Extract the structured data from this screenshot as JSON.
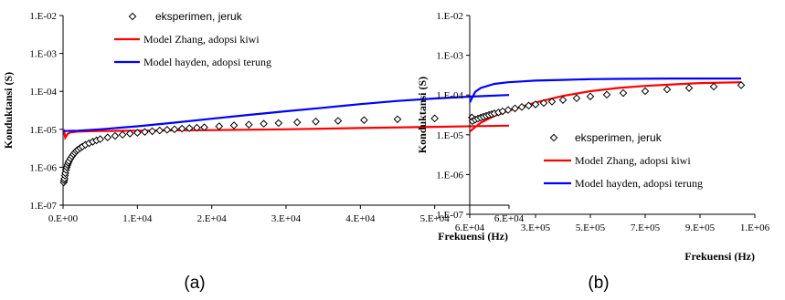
{
  "chart_data": [
    {
      "type": "line",
      "panel_label": "(a)",
      "xlabel": "Frekuensi (Hz)",
      "ylabel": "Konduktansi (S)",
      "xscale": "linear",
      "yscale": "log",
      "xlim": [
        0,
        60000
      ],
      "ylim": [
        1e-07,
        0.01
      ],
      "x_ticks": [
        0,
        10000,
        20000,
        30000,
        40000,
        50000,
        60000
      ],
      "x_tick_labels": [
        "0.E+00",
        "1.E+04",
        "2.E+04",
        "3.E+04",
        "4.E+04",
        "5.E+04",
        "6.E+04"
      ],
      "y_ticks": [
        1e-07,
        1e-06,
        1e-05,
        0.0001,
        0.001,
        0.01
      ],
      "y_tick_labels": [
        "1.E-07",
        "1.E-06",
        "1.E-05",
        "1.E-04",
        "1.E-03",
        "1.E-02"
      ],
      "legend_position": "top-right",
      "series": [
        {
          "name": "eksperimen, jeruk",
          "style": "markers",
          "marker": "diamond",
          "color": "#000000",
          "x": [
            100,
            150,
            200,
            250,
            300,
            400,
            500,
            600,
            700,
            800,
            1000,
            1200,
            1400,
            1600,
            1800,
            2000,
            2300,
            2600,
            3000,
            3500,
            4000,
            4500,
            5000,
            6000,
            7000,
            8000,
            9000,
            10000,
            11000,
            12000,
            13000,
            14000,
            15000,
            16000,
            17000,
            18000,
            19000,
            21000,
            23000,
            25000,
            27000,
            29000,
            31500,
            34000,
            37000,
            40500,
            45000,
            50000,
            55000
          ],
          "y": [
            4e-07,
            4.5e-07,
            5e-07,
            6e-07,
            7e-07,
            8.5e-07,
            1e-06,
            1.15e-06,
            1.3e-06,
            1.45e-06,
            1.7e-06,
            1.95e-06,
            2.2e-06,
            2.45e-06,
            2.7e-06,
            2.9e-06,
            3.2e-06,
            3.5e-06,
            3.9e-06,
            4.3e-06,
            4.7e-06,
            5.1e-06,
            5.5e-06,
            6.1e-06,
            6.7e-06,
            7.2e-06,
            7.7e-06,
            8.1e-06,
            8.5e-06,
            8.9e-06,
            9.3e-06,
            9.7e-06,
            1e-05,
            1.04e-05,
            1.07e-05,
            1.1e-05,
            1.13e-05,
            1.2e-05,
            1.27e-05,
            1.33e-05,
            1.4e-05,
            1.46e-05,
            1.53e-05,
            1.6e-05,
            1.67e-05,
            1.75e-05,
            1.84e-05,
            1.94e-05,
            2.05e-05
          ]
        },
        {
          "name": "Model Zhang, adopsi kiwi",
          "style": "line",
          "color": "#ff0000",
          "x": [
            100,
            300,
            600,
            1000,
            2000,
            5000,
            10000,
            20000,
            30000,
            40000,
            50000,
            60000
          ],
          "y": [
            1e-05,
            6e-06,
            7.5e-06,
            8.3e-06,
            8.7e-06,
            9e-06,
            9.2e-06,
            9.5e-06,
            1e-05,
            1.08e-05,
            1.16e-05,
            1.25e-05
          ]
        },
        {
          "name": "Model hayden, adopsi terung",
          "style": "line",
          "color": "#0000ff",
          "x": [
            0,
            2000,
            5000,
            10000,
            15000,
            20000,
            25000,
            30000,
            35000,
            40000,
            45000,
            50000,
            55000,
            60000
          ],
          "y": [
            9e-06,
            9.2e-06,
            1e-05,
            1.2e-05,
            1.5e-05,
            1.9e-05,
            2.4e-05,
            3e-05,
            3.7e-05,
            4.6e-05,
            5.6e-05,
            6.5e-05,
            7.3e-05,
            8e-05
          ]
        }
      ]
    },
    {
      "type": "line",
      "panel_label": "(b)",
      "xlabel": "Frekuensi (Hz)",
      "ylabel": "Konduktansi (S)",
      "xscale": "linear",
      "yscale": "log",
      "xlim": [
        60000,
        1100000
      ],
      "ylim": [
        1e-07,
        0.01
      ],
      "x_ticks": [
        60000,
        300000,
        500000,
        700000,
        900000,
        1100000
      ],
      "x_tick_labels": [
        "6.E+04",
        "3.E+05",
        "5.E+05",
        "7.E+05",
        "9.E+05",
        "1.E+06"
      ],
      "y_ticks": [
        1e-07,
        1e-06,
        1e-05,
        0.0001,
        0.001,
        0.01
      ],
      "y_tick_labels": [
        "1.E-07",
        "1.E-06",
        "1.E-05",
        "1.E-04",
        "1.E-03",
        "1.E-02"
      ],
      "legend_position": "center-right",
      "series": [
        {
          "name": "eksperimen, jeruk",
          "style": "markers",
          "marker": "diamond",
          "color": "#000000",
          "x": [
            70000,
            80000,
            90000,
            100000,
            110000,
            120000,
            130000,
            140000,
            150000,
            165000,
            180000,
            200000,
            225000,
            250000,
            275000,
            300000,
            330000,
            360000,
            400000,
            450000,
            500000,
            560000,
            620000,
            700000,
            780000,
            860000,
            950000,
            1050000
          ],
          "y": [
            2.2e-05,
            2.4e-05,
            2.55e-05,
            2.7e-05,
            2.85e-05,
            3e-05,
            3.15e-05,
            3.3e-05,
            3.45e-05,
            3.65e-05,
            3.9e-05,
            4.2e-05,
            4.6e-05,
            5e-05,
            5.4e-05,
            5.8e-05,
            6.3e-05,
            6.8e-05,
            7.5e-05,
            8.3e-05,
            9.2e-05,
            0.000102,
            0.000112,
            0.000125,
            0.000138,
            0.00015,
            0.000163,
            0.000177
          ]
        },
        {
          "name": "Model Zhang, adopsi kiwi",
          "style": "line",
          "color": "#ff0000",
          "x": [
            60000,
            100000,
            150000,
            200000,
            300000,
            400000,
            500000,
            600000,
            700000,
            800000,
            900000,
            1050000
          ],
          "y": [
            1.2e-05,
            2e-05,
            3e-05,
            4e-05,
            6.5e-05,
            9.5e-05,
            0.000125,
            0.00015,
            0.00017,
            0.000185,
            0.0002,
            0.00021
          ]
        },
        {
          "name": "Model hayden, adopsi terung",
          "style": "line",
          "color": "#0000ff",
          "x": [
            60000,
            80000,
            100000,
            150000,
            200000,
            250000,
            300000,
            400000,
            500000,
            600000,
            800000,
            1050000
          ],
          "y": [
            6.5e-05,
            0.00012,
            0.00015,
            0.00019,
            0.00021,
            0.00022,
            0.00023,
            0.00024,
            0.00025,
            0.000255,
            0.00026,
            0.00026
          ]
        }
      ]
    }
  ]
}
